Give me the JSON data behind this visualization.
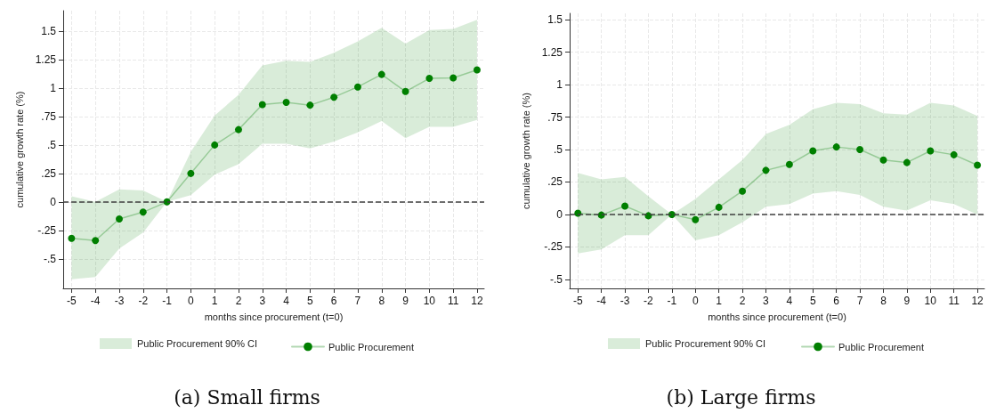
{
  "chart_data": [
    {
      "type": "line",
      "title": "(a) Small firms",
      "xlabel": "months since procurement (t=0)",
      "ylabel": "cumulative growth rate (%)",
      "x": [
        -5,
        -4,
        -3,
        -2,
        -1,
        0,
        1,
        2,
        3,
        4,
        5,
        6,
        7,
        8,
        9,
        10,
        11,
        12
      ],
      "series": [
        {
          "name": "Public Procurement",
          "color": "#007f00",
          "values": [
            -0.32,
            -0.34,
            -0.15,
            -0.09,
            0,
            0.25,
            0.5,
            0.635,
            0.855,
            0.875,
            0.85,
            0.92,
            1.01,
            1.12,
            0.97,
            1.085,
            1.09,
            1.16
          ],
          "lower": [
            -0.68,
            -0.66,
            -0.41,
            -0.27,
            0,
            0.06,
            0.24,
            0.33,
            0.51,
            0.51,
            0.47,
            0.53,
            0.61,
            0.71,
            0.56,
            0.66,
            0.66,
            0.72
          ],
          "upper": [
            0.05,
            0,
            0.11,
            0.1,
            0,
            0.44,
            0.76,
            0.94,
            1.2,
            1.24,
            1.23,
            1.31,
            1.41,
            1.53,
            1.39,
            1.51,
            1.52,
            1.6
          ]
        }
      ],
      "annotations": [
        "Public Procurement 90% CI"
      ],
      "xlim": [
        -5.35,
        12.3
      ],
      "xticks": [
        -5,
        -4,
        -3,
        -2,
        -1,
        0,
        1,
        2,
        3,
        4,
        5,
        6,
        7,
        8,
        9,
        10,
        11,
        12
      ],
      "ylim": [
        -0.76,
        1.68
      ],
      "yticks": [
        {
          "value": -0.5,
          "label": "-.5"
        },
        {
          "value": -0.25,
          "label": "-.25"
        },
        0,
        {
          "value": 0.25,
          "label": ".25"
        },
        {
          "value": 0.5,
          "label": ".5"
        },
        {
          "value": 0.75,
          "label": ".75"
        },
        1,
        1.25,
        1.5
      ],
      "ref_lines": [
        {
          "axis": "y",
          "value": 0,
          "color": "#404040",
          "line_style": "dashed"
        }
      ],
      "grid": true,
      "legend": "bottom",
      "marker": "circle",
      "line_style": "solid"
    },
    {
      "type": "line",
      "title": "(b) Large firms",
      "xlabel": "months since procurement (t=0)",
      "ylabel": "cumulative growth rate (%)",
      "x": [
        -5,
        -4,
        -3,
        -2,
        -1,
        0,
        1,
        2,
        3,
        4,
        5,
        6,
        7,
        8,
        9,
        10,
        11,
        12
      ],
      "series": [
        {
          "name": "Public Procurement",
          "color": "#007f00",
          "values": [
            0.01,
            -0.005,
            0.065,
            -0.01,
            0,
            -0.04,
            0.055,
            0.18,
            0.34,
            0.385,
            0.49,
            0.52,
            0.5,
            0.42,
            0.4,
            0.49,
            0.46,
            0.38
          ],
          "lower": [
            -0.3,
            -0.27,
            -0.16,
            -0.16,
            0,
            -0.2,
            -0.16,
            -0.06,
            0.06,
            0.08,
            0.16,
            0.18,
            0.15,
            0.06,
            0.03,
            0.11,
            0.08,
            0
          ],
          "upper": [
            0.32,
            0.27,
            0.29,
            0.14,
            0,
            0.12,
            0.27,
            0.42,
            0.62,
            0.69,
            0.81,
            0.86,
            0.85,
            0.78,
            0.77,
            0.86,
            0.84,
            0.76
          ]
        }
      ],
      "annotations": [
        "Public Procurement 90% CI"
      ],
      "xlim": [
        -5.35,
        12.3
      ],
      "xticks": [
        -5,
        -4,
        -3,
        -2,
        -1,
        0,
        1,
        2,
        3,
        4,
        5,
        6,
        7,
        8,
        9,
        10,
        11,
        12
      ],
      "ylim": [
        -0.57,
        1.55
      ],
      "yticks": [
        {
          "value": -0.5,
          "label": "-.5"
        },
        {
          "value": -0.25,
          "label": "-.25"
        },
        0,
        {
          "value": 0.25,
          "label": ".25"
        },
        {
          "value": 0.5,
          "label": ".5"
        },
        {
          "value": 0.75,
          "label": ".75"
        },
        1,
        1.25,
        1.5
      ],
      "ref_lines": [
        {
          "axis": "y",
          "value": 0,
          "color": "#404040",
          "line_style": "dashed"
        }
      ],
      "grid": true,
      "legend": "bottom",
      "marker": "circle",
      "line_style": "solid"
    }
  ]
}
